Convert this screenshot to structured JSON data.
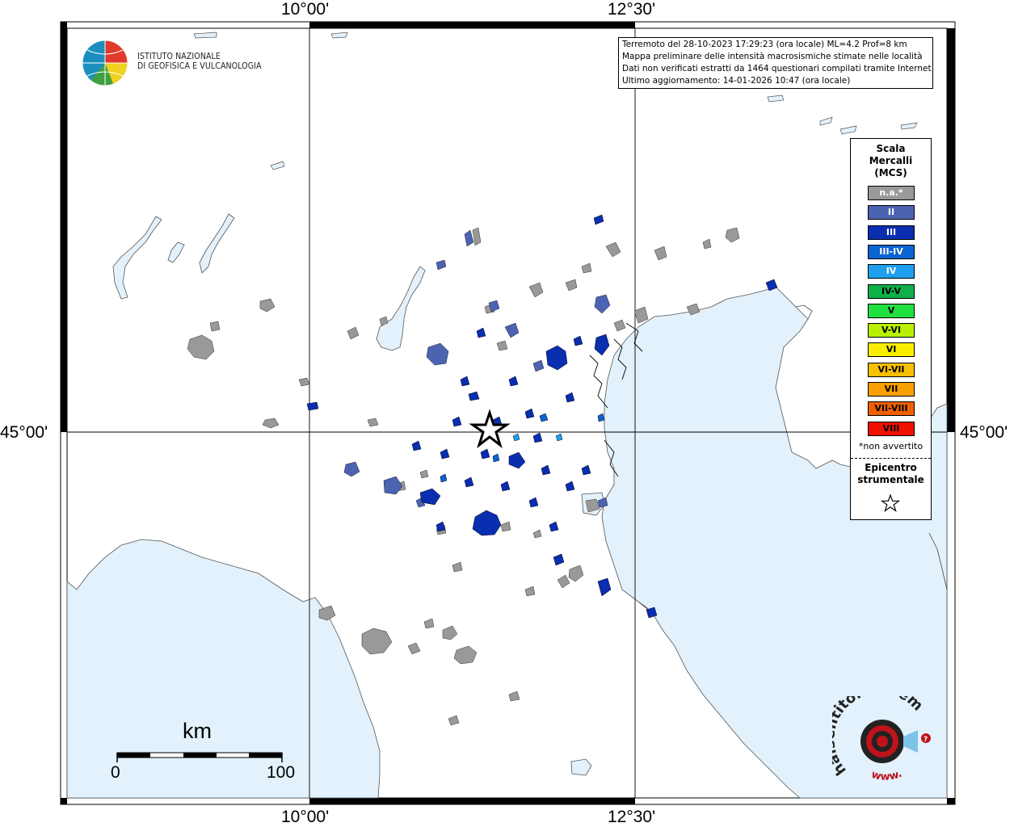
{
  "coords": {
    "top_left": "10°00'",
    "top_right": "12°30'",
    "bottom_left": "10°00'",
    "bottom_right": "12°30'",
    "left_lat": "45°00'",
    "right_lat": "45°00'"
  },
  "logo": {
    "line1": "ISTITUTO NAZIONALE",
    "line2": "DI GEOFISICA E VULCANOLOGIA"
  },
  "info": {
    "line1": "Terremoto del 28-10-2023 17:29:23 (ora locale) ML=4.2 Prof=8 km",
    "line2": "Mappa preliminare delle intensità macrosismiche stimate nelle località",
    "line3": "Dati non verificati estratti da 1464 questionari compilati tramite Internet.",
    "line4": "Ultimo aggiornamento: 14-01-2026 10:47 (ora locale)"
  },
  "legend": {
    "title_lines": [
      "Scala",
      "Mercalli",
      "(MCS)"
    ],
    "items": [
      {
        "label": "n.a.*",
        "color": "#999999",
        "text_color": "#ffffff"
      },
      {
        "label": "II",
        "color": "#4c63b2",
        "text_color": "#ffffff"
      },
      {
        "label": "III",
        "color": "#0a2eb0",
        "text_color": "#ffffff"
      },
      {
        "label": "III-IV",
        "color": "#0a64d2",
        "text_color": "#ffffff"
      },
      {
        "label": "IV",
        "color": "#1ea0f0",
        "text_color": "#ffffff"
      },
      {
        "label": "IV-V",
        "color": "#10b04a",
        "text_color": "#000000"
      },
      {
        "label": "V",
        "color": "#20e040",
        "text_color": "#000000"
      },
      {
        "label": "V-VI",
        "color": "#b8f000",
        "text_color": "#000000"
      },
      {
        "label": "VI",
        "color": "#f8f000",
        "text_color": "#000000"
      },
      {
        "label": "VI-VII",
        "color": "#f8c000",
        "text_color": "#000000"
      },
      {
        "label": "VII",
        "color": "#f8a000",
        "text_color": "#000000"
      },
      {
        "label": "VII-VIII",
        "color": "#f06000",
        "text_color": "#000000"
      },
      {
        "label": "VIII",
        "color": "#f01000",
        "text_color": "#000000"
      }
    ],
    "note": "*non avvertito",
    "epicenter_lines": [
      "Epicentro",
      "strumentale"
    ]
  },
  "scalebar": {
    "unit": "km",
    "min_label": "0",
    "max_label": "100"
  },
  "hst_logo": {
    "text": "haisentitoilterremoto.it",
    "web": "www."
  },
  "colors": {
    "sea": "#e2f1fb",
    "na": "#999999",
    "ii": "#4c63b2",
    "iii": "#0a2eb0",
    "iii_iv": "#0a64d2",
    "iv": "#1ea0f0"
  }
}
